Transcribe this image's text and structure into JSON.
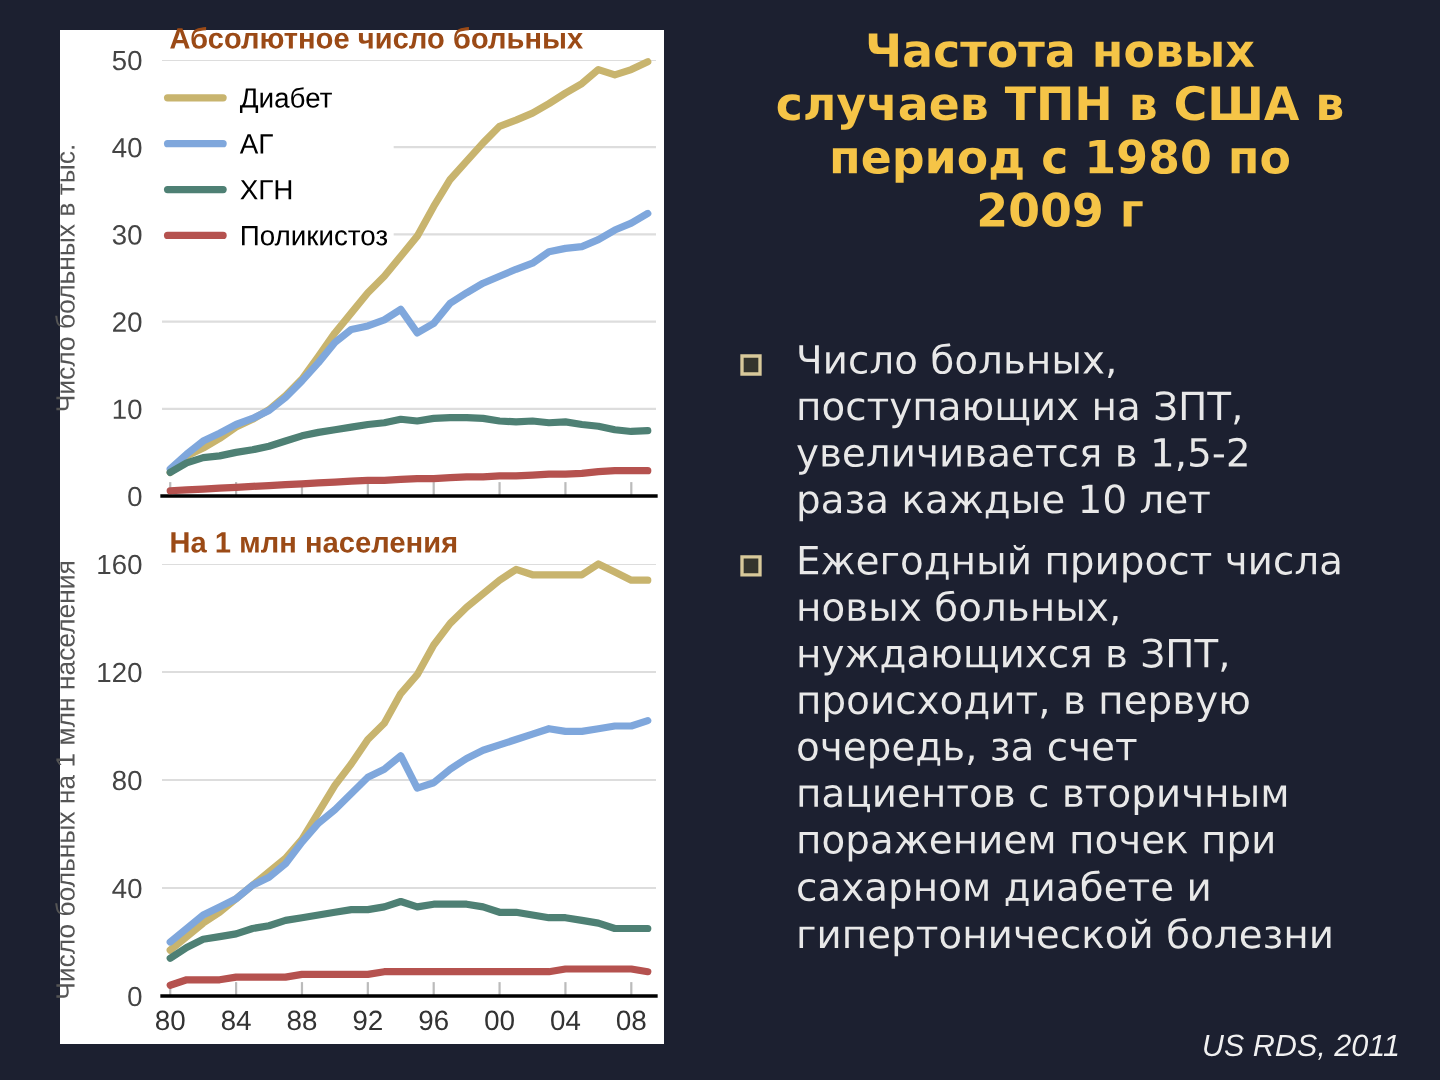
{
  "chart_data": [
    {
      "type": "line",
      "title": "Абсолютное число больных",
      "ylabel": "Число больных в тыс.",
      "x": [
        1980,
        1981,
        1982,
        1983,
        1984,
        1985,
        1986,
        1987,
        1988,
        1989,
        1990,
        1991,
        1992,
        1993,
        1994,
        1995,
        1996,
        1997,
        1998,
        1999,
        2000,
        2001,
        2002,
        2003,
        2004,
        2005,
        2006,
        2007,
        2008,
        2009
      ],
      "xlim": [
        1979.5,
        2009.5
      ],
      "xticks": [
        {
          "value": 1980,
          "label": null
        },
        {
          "value": 1984,
          "label": null
        },
        {
          "value": 1988,
          "label": null
        },
        {
          "value": 1992,
          "label": null
        },
        {
          "value": 1996,
          "label": null
        },
        {
          "value": 2000,
          "label": null
        },
        {
          "value": 2004,
          "label": null
        },
        {
          "value": 2008,
          "label": null
        }
      ],
      "ylim": [
        0,
        50
      ],
      "yticks": [
        0,
        10,
        20,
        30,
        40,
        50
      ],
      "grid": "y",
      "legend": "top left",
      "tick_labels": "y",
      "series": [
        {
          "name": "Диабет",
          "color": "#c8b46e",
          "values": [
            2.7,
            4.6,
            5.5,
            6.6,
            7.9,
            8.8,
            9.9,
            11.5,
            13.4,
            16.0,
            18.7,
            21.0,
            23.3,
            25.2,
            27.5,
            29.8,
            33.2,
            36.3,
            38.4,
            40.5,
            42.4,
            43.1,
            43.9,
            45.0,
            46.2,
            47.3,
            48.9,
            48.3,
            48.9,
            49.8
          ]
        },
        {
          "name": "АГ",
          "color": "#7fa7dc",
          "values": [
            3.1,
            4.8,
            6.3,
            7.2,
            8.2,
            8.9,
            9.8,
            11.3,
            13.2,
            15.3,
            17.6,
            19.1,
            19.5,
            20.2,
            21.4,
            18.7,
            19.8,
            22.1,
            23.3,
            24.4,
            25.2,
            26.0,
            26.7,
            28.0,
            28.4,
            28.6,
            29.4,
            30.5,
            31.3,
            32.4
          ]
        },
        {
          "name": "ХГН",
          "color": "#4e8074",
          "values": [
            2.7,
            3.8,
            4.4,
            4.6,
            5.0,
            5.3,
            5.7,
            6.3,
            6.9,
            7.3,
            7.6,
            7.9,
            8.2,
            8.4,
            8.8,
            8.6,
            8.9,
            9.0,
            9.0,
            8.9,
            8.6,
            8.5,
            8.6,
            8.4,
            8.5,
            8.2,
            8.0,
            7.6,
            7.4,
            7.5
          ]
        },
        {
          "name": "Поликистоз",
          "color": "#b5524f",
          "values": [
            0.6,
            0.7,
            0.8,
            0.9,
            1.0,
            1.1,
            1.2,
            1.3,
            1.4,
            1.5,
            1.6,
            1.7,
            1.8,
            1.8,
            1.9,
            2.0,
            2.0,
            2.1,
            2.2,
            2.2,
            2.3,
            2.3,
            2.4,
            2.5,
            2.5,
            2.6,
            2.8,
            2.9,
            2.9,
            2.9
          ]
        }
      ]
    },
    {
      "type": "line",
      "title": "На 1 млн населения",
      "ylabel": "Число больных на 1 млн населения",
      "x": [
        1980,
        1981,
        1982,
        1983,
        1984,
        1985,
        1986,
        1987,
        1988,
        1989,
        1990,
        1991,
        1992,
        1993,
        1994,
        1995,
        1996,
        1997,
        1998,
        1999,
        2000,
        2001,
        2002,
        2003,
        2004,
        2005,
        2006,
        2007,
        2008,
        2009
      ],
      "xlim": [
        1979.5,
        2009.5
      ],
      "xticks": [
        {
          "value": 1980,
          "label": "80"
        },
        {
          "value": 1984,
          "label": "84"
        },
        {
          "value": 1988,
          "label": "88"
        },
        {
          "value": 1992,
          "label": "92"
        },
        {
          "value": 1996,
          "label": "96"
        },
        {
          "value": 2000,
          "label": "00"
        },
        {
          "value": 2004,
          "label": "04"
        },
        {
          "value": 2008,
          "label": "08"
        }
      ],
      "ylim": [
        0,
        160
      ],
      "yticks": [
        0,
        40,
        80,
        120,
        160
      ],
      "grid": "y",
      "series": [
        {
          "color": "#c8b46e",
          "values": [
            17,
            22,
            27,
            31,
            36,
            41,
            46,
            51,
            58,
            68,
            78,
            86,
            95,
            101,
            112,
            119,
            130,
            138,
            144,
            149,
            154,
            158,
            156,
            156,
            156,
            156,
            160,
            157,
            154,
            154
          ]
        },
        {
          "color": "#7fa7dc",
          "values": [
            20,
            25,
            30,
            33,
            36,
            41,
            44,
            49,
            57,
            64,
            69,
            75,
            81,
            84,
            89,
            77,
            79,
            84,
            88,
            91,
            93,
            95,
            97,
            99,
            98,
            98,
            99,
            100,
            100,
            102
          ]
        },
        {
          "color": "#4e8074",
          "values": [
            14,
            18,
            21,
            22,
            23,
            25,
            26,
            28,
            29,
            30,
            31,
            32,
            32,
            33,
            35,
            33,
            34,
            34,
            34,
            33,
            31,
            31,
            30,
            29,
            29,
            28,
            27,
            25,
            25,
            25
          ]
        },
        {
          "color": "#b5524f",
          "values": [
            4,
            6,
            6,
            6,
            7,
            7,
            7,
            7,
            8,
            8,
            8,
            8,
            8,
            9,
            9,
            9,
            9,
            9,
            9,
            9,
            9,
            9,
            9,
            9,
            10,
            10,
            10,
            10,
            10,
            9
          ]
        }
      ]
    },
    {
      "type": "other",
      "title": "Частота новых случаев ТПН в США в период с 1980 по 2009 г",
      "annotations": [
        "Число больных, поступающих на ЗПТ, увеличивается в 1,5-2 раза каждые 10 лет",
        "Ежегодный прирост числа новых больных, нуждающихся в ЗПТ, происходит, в первую очередь, за счет пациентов с вторичным поражением почек при сахарном диабете и гипертонической болезни",
        "US RDS, 2011"
      ]
    }
  ]
}
